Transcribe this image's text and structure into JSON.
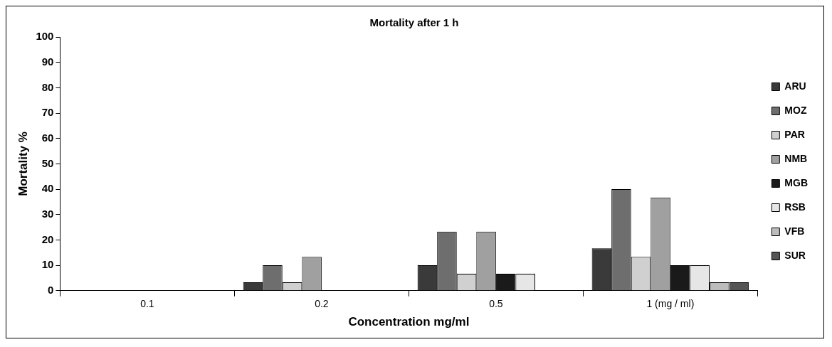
{
  "chart_data": {
    "type": "bar",
    "title": "Mortality after 1 h",
    "xlabel": "Concentration mg/ml",
    "ylabel": "Mortality %",
    "categories": [
      "0.1",
      "0.2",
      "0.5",
      "1 (mg / ml)"
    ],
    "ylim": [
      0,
      100
    ],
    "yticks": [
      0,
      10,
      20,
      30,
      40,
      50,
      60,
      70,
      80,
      90,
      100
    ],
    "grid": false,
    "legend": "right",
    "series": [
      {
        "name": "ARU",
        "color": "#3a3a3a",
        "values": [
          0,
          3.3,
          10,
          16.7
        ]
      },
      {
        "name": "MOZ",
        "color": "#6e6e6e",
        "values": [
          0,
          10,
          23.3,
          40
        ]
      },
      {
        "name": "PAR",
        "color": "#d0d0d0",
        "values": [
          0,
          3.3,
          6.7,
          13.3
        ]
      },
      {
        "name": "NMB",
        "color": "#a0a0a0",
        "values": [
          0,
          13.3,
          23.3,
          36.7
        ]
      },
      {
        "name": "MGB",
        "color": "#1a1a1a",
        "values": [
          0,
          0,
          6.7,
          10
        ]
      },
      {
        "name": "RSB",
        "color": "#e6e6e6",
        "values": [
          0,
          0,
          6.7,
          10
        ]
      },
      {
        "name": "VFB",
        "color": "#bcbcbc",
        "values": [
          0,
          0,
          0,
          3.3
        ]
      },
      {
        "name": "SUR",
        "color": "#555555",
        "values": [
          0,
          0,
          0,
          3.3
        ]
      }
    ]
  }
}
